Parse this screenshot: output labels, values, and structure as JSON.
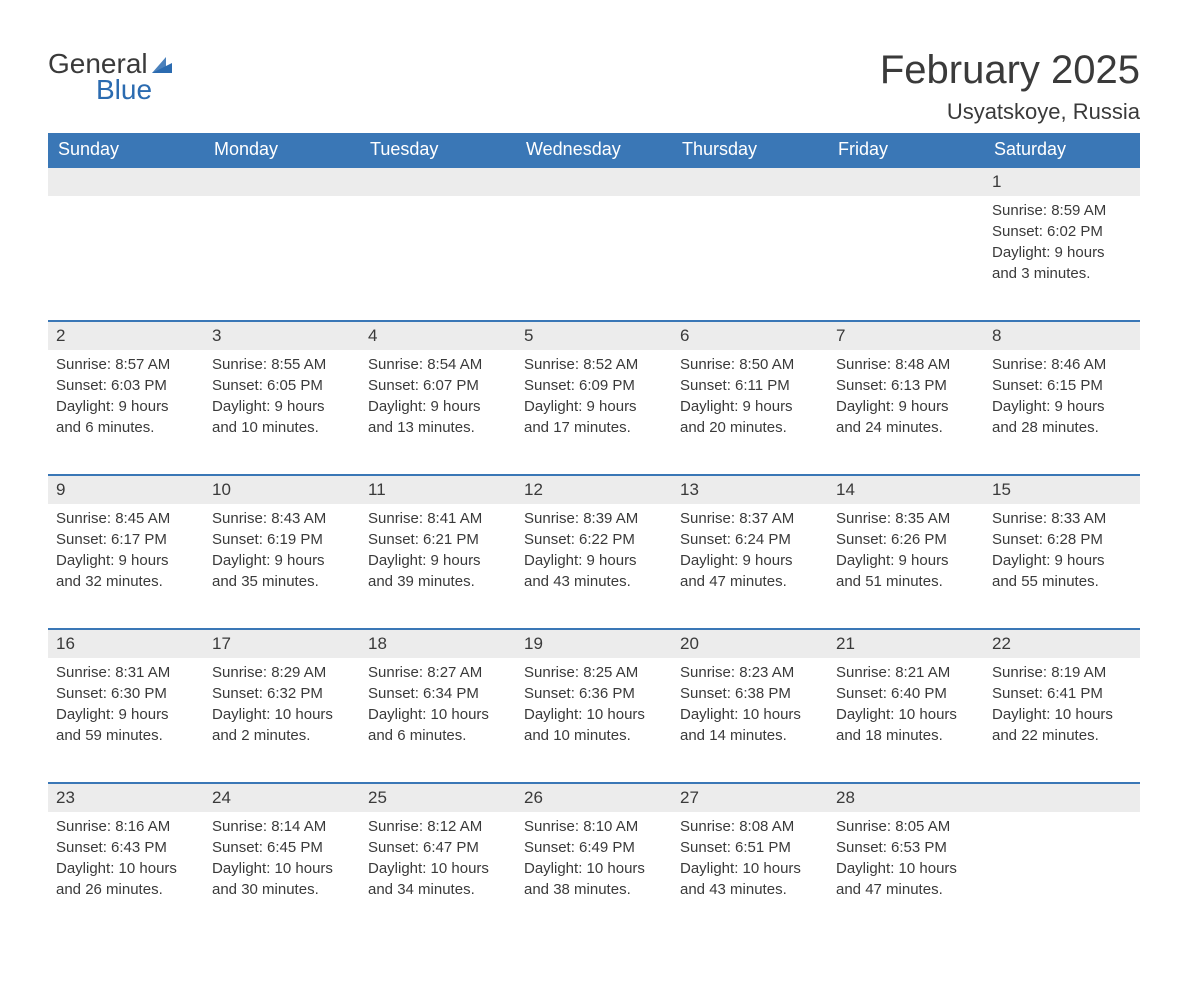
{
  "logo": {
    "text_general": "General",
    "text_blue": "Blue",
    "flag_color": "#2b6bb0",
    "general_color": "#3a3a3a",
    "blue_color": "#2b6bb0"
  },
  "title": "February 2025",
  "location": "Usyatskoye, Russia",
  "colors": {
    "header_bg": "#3a77b6",
    "header_text": "#ffffff",
    "daynum_bg": "#ececec",
    "row_border": "#3a77b6",
    "body_text": "#3a3a3a",
    "page_bg": "#ffffff"
  },
  "fonts": {
    "title_size_pt": 30,
    "location_size_pt": 16,
    "header_size_pt": 13,
    "daynum_size_pt": 13,
    "body_size_pt": 11
  },
  "weekdays": [
    "Sunday",
    "Monday",
    "Tuesday",
    "Wednesday",
    "Thursday",
    "Friday",
    "Saturday"
  ],
  "weeks": [
    [
      null,
      null,
      null,
      null,
      null,
      null,
      {
        "d": "1",
        "sunrise": "8:59 AM",
        "sunset": "6:02 PM",
        "daylight": "9 hours and 3 minutes."
      }
    ],
    [
      {
        "d": "2",
        "sunrise": "8:57 AM",
        "sunset": "6:03 PM",
        "daylight": "9 hours and 6 minutes."
      },
      {
        "d": "3",
        "sunrise": "8:55 AM",
        "sunset": "6:05 PM",
        "daylight": "9 hours and 10 minutes."
      },
      {
        "d": "4",
        "sunrise": "8:54 AM",
        "sunset": "6:07 PM",
        "daylight": "9 hours and 13 minutes."
      },
      {
        "d": "5",
        "sunrise": "8:52 AM",
        "sunset": "6:09 PM",
        "daylight": "9 hours and 17 minutes."
      },
      {
        "d": "6",
        "sunrise": "8:50 AM",
        "sunset": "6:11 PM",
        "daylight": "9 hours and 20 minutes."
      },
      {
        "d": "7",
        "sunrise": "8:48 AM",
        "sunset": "6:13 PM",
        "daylight": "9 hours and 24 minutes."
      },
      {
        "d": "8",
        "sunrise": "8:46 AM",
        "sunset": "6:15 PM",
        "daylight": "9 hours and 28 minutes."
      }
    ],
    [
      {
        "d": "9",
        "sunrise": "8:45 AM",
        "sunset": "6:17 PM",
        "daylight": "9 hours and 32 minutes."
      },
      {
        "d": "10",
        "sunrise": "8:43 AM",
        "sunset": "6:19 PM",
        "daylight": "9 hours and 35 minutes."
      },
      {
        "d": "11",
        "sunrise": "8:41 AM",
        "sunset": "6:21 PM",
        "daylight": "9 hours and 39 minutes."
      },
      {
        "d": "12",
        "sunrise": "8:39 AM",
        "sunset": "6:22 PM",
        "daylight": "9 hours and 43 minutes."
      },
      {
        "d": "13",
        "sunrise": "8:37 AM",
        "sunset": "6:24 PM",
        "daylight": "9 hours and 47 minutes."
      },
      {
        "d": "14",
        "sunrise": "8:35 AM",
        "sunset": "6:26 PM",
        "daylight": "9 hours and 51 minutes."
      },
      {
        "d": "15",
        "sunrise": "8:33 AM",
        "sunset": "6:28 PM",
        "daylight": "9 hours and 55 minutes."
      }
    ],
    [
      {
        "d": "16",
        "sunrise": "8:31 AM",
        "sunset": "6:30 PM",
        "daylight": "9 hours and 59 minutes."
      },
      {
        "d": "17",
        "sunrise": "8:29 AM",
        "sunset": "6:32 PM",
        "daylight": "10 hours and 2 minutes."
      },
      {
        "d": "18",
        "sunrise": "8:27 AM",
        "sunset": "6:34 PM",
        "daylight": "10 hours and 6 minutes."
      },
      {
        "d": "19",
        "sunrise": "8:25 AM",
        "sunset": "6:36 PM",
        "daylight": "10 hours and 10 minutes."
      },
      {
        "d": "20",
        "sunrise": "8:23 AM",
        "sunset": "6:38 PM",
        "daylight": "10 hours and 14 minutes."
      },
      {
        "d": "21",
        "sunrise": "8:21 AM",
        "sunset": "6:40 PM",
        "daylight": "10 hours and 18 minutes."
      },
      {
        "d": "22",
        "sunrise": "8:19 AM",
        "sunset": "6:41 PM",
        "daylight": "10 hours and 22 minutes."
      }
    ],
    [
      {
        "d": "23",
        "sunrise": "8:16 AM",
        "sunset": "6:43 PM",
        "daylight": "10 hours and 26 minutes."
      },
      {
        "d": "24",
        "sunrise": "8:14 AM",
        "sunset": "6:45 PM",
        "daylight": "10 hours and 30 minutes."
      },
      {
        "d": "25",
        "sunrise": "8:12 AM",
        "sunset": "6:47 PM",
        "daylight": "10 hours and 34 minutes."
      },
      {
        "d": "26",
        "sunrise": "8:10 AM",
        "sunset": "6:49 PM",
        "daylight": "10 hours and 38 minutes."
      },
      {
        "d": "27",
        "sunrise": "8:08 AM",
        "sunset": "6:51 PM",
        "daylight": "10 hours and 43 minutes."
      },
      {
        "d": "28",
        "sunrise": "8:05 AM",
        "sunset": "6:53 PM",
        "daylight": "10 hours and 47 minutes."
      },
      null
    ]
  ],
  "labels": {
    "sunrise": "Sunrise: ",
    "sunset": "Sunset: ",
    "daylight": "Daylight: "
  }
}
